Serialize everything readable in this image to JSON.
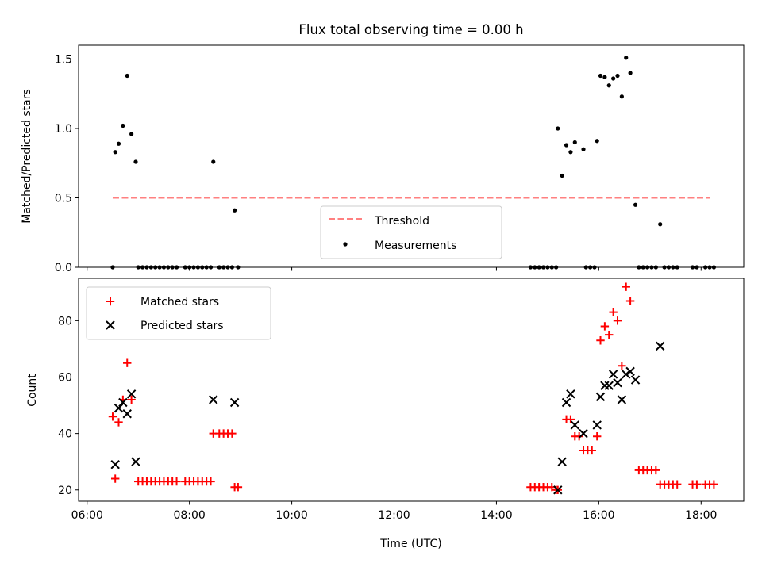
{
  "figure": {
    "title": "Flux total observing time = 0.00 h"
  },
  "chart_data": [
    {
      "type": "scatter",
      "title": "Flux total observing time = 0.00 h",
      "xlabel": "",
      "ylabel": "Matched/Predicted stars",
      "xlim": [
        "05:50",
        "18:50"
      ],
      "ylim": [
        0,
        1.6
      ],
      "x_ticks": [
        "06:00",
        "08:00",
        "10:00",
        "12:00",
        "14:00",
        "16:00",
        "18:00"
      ],
      "y_ticks": [
        "0.0",
        "0.5",
        "1.0",
        "1.5"
      ],
      "y_tick_values": [
        0,
        0.5,
        1.0,
        1.5
      ],
      "grid": false,
      "legend": "lower center",
      "threshold": {
        "name": "Threshold",
        "y": 0.5,
        "x_start": "06:30",
        "x_end": "18:10",
        "color": "#ff8080",
        "style": "dashed"
      },
      "series": [
        {
          "name": "Measurements",
          "marker": "dot",
          "color": "#000000",
          "points": [
            [
              "06:30",
              0.0
            ],
            [
              "06:33",
              0.83
            ],
            [
              "06:37",
              0.89
            ],
            [
              "06:42",
              1.02
            ],
            [
              "06:47",
              1.38
            ],
            [
              "06:52",
              0.96
            ],
            [
              "06:57",
              0.76
            ],
            [
              "07:00",
              0.0
            ],
            [
              "07:05",
              0.0
            ],
            [
              "07:10",
              0.0
            ],
            [
              "07:15",
              0.0
            ],
            [
              "07:20",
              0.0
            ],
            [
              "07:25",
              0.0
            ],
            [
              "07:30",
              0.0
            ],
            [
              "07:35",
              0.0
            ],
            [
              "07:40",
              0.0
            ],
            [
              "07:45",
              0.0
            ],
            [
              "07:55",
              0.0
            ],
            [
              "08:00",
              0.0
            ],
            [
              "08:05",
              0.0
            ],
            [
              "08:10",
              0.0
            ],
            [
              "08:15",
              0.0
            ],
            [
              "08:20",
              0.0
            ],
            [
              "08:25",
              0.0
            ],
            [
              "08:28",
              0.76
            ],
            [
              "08:35",
              0.0
            ],
            [
              "08:40",
              0.0
            ],
            [
              "08:45",
              0.0
            ],
            [
              "08:50",
              0.0
            ],
            [
              "08:53",
              0.41
            ],
            [
              "08:57",
              0.0
            ],
            [
              "14:40",
              0.0
            ],
            [
              "14:45",
              0.0
            ],
            [
              "14:50",
              0.0
            ],
            [
              "14:55",
              0.0
            ],
            [
              "15:00",
              0.0
            ],
            [
              "15:05",
              0.0
            ],
            [
              "15:10",
              0.0
            ],
            [
              "15:12",
              1.0
            ],
            [
              "15:17",
              0.66
            ],
            [
              "15:22",
              0.88
            ],
            [
              "15:27",
              0.83
            ],
            [
              "15:32",
              0.9
            ],
            [
              "15:42",
              0.85
            ],
            [
              "15:45",
              0.0
            ],
            [
              "15:50",
              0.0
            ],
            [
              "15:55",
              0.0
            ],
            [
              "15:58",
              0.91
            ],
            [
              "16:02",
              1.38
            ],
            [
              "16:07",
              1.37
            ],
            [
              "16:12",
              1.31
            ],
            [
              "16:17",
              1.36
            ],
            [
              "16:22",
              1.38
            ],
            [
              "16:27",
              1.23
            ],
            [
              "16:32",
              1.51
            ],
            [
              "16:37",
              1.4
            ],
            [
              "16:43",
              0.45
            ],
            [
              "16:47",
              0.0
            ],
            [
              "16:52",
              0.0
            ],
            [
              "16:57",
              0.0
            ],
            [
              "17:02",
              0.0
            ],
            [
              "17:07",
              0.0
            ],
            [
              "17:12",
              0.31
            ],
            [
              "17:17",
              0.0
            ],
            [
              "17:22",
              0.0
            ],
            [
              "17:27",
              0.0
            ],
            [
              "17:32",
              0.0
            ],
            [
              "17:50",
              0.0
            ],
            [
              "17:55",
              0.0
            ],
            [
              "18:05",
              0.0
            ],
            [
              "18:10",
              0.0
            ],
            [
              "18:15",
              0.0
            ]
          ]
        }
      ]
    },
    {
      "type": "scatter",
      "title": "",
      "xlabel": "Time (UTC)",
      "ylabel": "Count",
      "xlim": [
        "05:50",
        "18:50"
      ],
      "ylim": [
        16,
        95
      ],
      "x_ticks": [
        "06:00",
        "08:00",
        "10:00",
        "12:00",
        "14:00",
        "16:00",
        "18:00"
      ],
      "y_ticks": [
        "20",
        "40",
        "60",
        "80"
      ],
      "y_tick_values": [
        20,
        40,
        60,
        80
      ],
      "grid": false,
      "legend": "upper left",
      "series": [
        {
          "name": "Matched stars",
          "marker": "plus",
          "color": "#ff0000",
          "points": [
            [
              "06:30",
              46
            ],
            [
              "06:33",
              24
            ],
            [
              "06:37",
              44
            ],
            [
              "06:42",
              52
            ],
            [
              "06:47",
              65
            ],
            [
              "06:52",
              52
            ],
            [
              "07:00",
              23
            ],
            [
              "07:05",
              23
            ],
            [
              "07:10",
              23
            ],
            [
              "07:15",
              23
            ],
            [
              "07:20",
              23
            ],
            [
              "07:25",
              23
            ],
            [
              "07:30",
              23
            ],
            [
              "07:35",
              23
            ],
            [
              "07:40",
              23
            ],
            [
              "07:45",
              23
            ],
            [
              "07:55",
              23
            ],
            [
              "08:00",
              23
            ],
            [
              "08:05",
              23
            ],
            [
              "08:10",
              23
            ],
            [
              "08:15",
              23
            ],
            [
              "08:20",
              23
            ],
            [
              "08:25",
              23
            ],
            [
              "08:28",
              40
            ],
            [
              "08:35",
              40
            ],
            [
              "08:40",
              40
            ],
            [
              "08:45",
              40
            ],
            [
              "08:50",
              40
            ],
            [
              "08:53",
              21
            ],
            [
              "08:57",
              21
            ],
            [
              "14:40",
              21
            ],
            [
              "14:45",
              21
            ],
            [
              "14:50",
              21
            ],
            [
              "14:55",
              21
            ],
            [
              "15:00",
              21
            ],
            [
              "15:05",
              21
            ],
            [
              "15:10",
              20
            ],
            [
              "15:12",
              20
            ],
            [
              "15:22",
              45
            ],
            [
              "15:27",
              45
            ],
            [
              "15:32",
              39
            ],
            [
              "15:37",
              39
            ],
            [
              "15:42",
              34
            ],
            [
              "15:47",
              34
            ],
            [
              "15:52",
              34
            ],
            [
              "15:58",
              39
            ],
            [
              "16:02",
              73
            ],
            [
              "16:07",
              78
            ],
            [
              "16:12",
              75
            ],
            [
              "16:17",
              83
            ],
            [
              "16:22",
              80
            ],
            [
              "16:27",
              64
            ],
            [
              "16:32",
              92
            ],
            [
              "16:37",
              87
            ],
            [
              "16:47",
              27
            ],
            [
              "16:52",
              27
            ],
            [
              "16:57",
              27
            ],
            [
              "17:02",
              27
            ],
            [
              "17:07",
              27
            ],
            [
              "17:12",
              22
            ],
            [
              "17:17",
              22
            ],
            [
              "17:22",
              22
            ],
            [
              "17:27",
              22
            ],
            [
              "17:32",
              22
            ],
            [
              "17:50",
              22
            ],
            [
              "17:55",
              22
            ],
            [
              "18:05",
              22
            ],
            [
              "18:10",
              22
            ],
            [
              "18:15",
              22
            ]
          ]
        },
        {
          "name": "Predicted stars",
          "marker": "x",
          "color": "#000000",
          "points": [
            [
              "06:33",
              29
            ],
            [
              "06:37",
              49
            ],
            [
              "06:42",
              51
            ],
            [
              "06:47",
              47
            ],
            [
              "06:52",
              54
            ],
            [
              "06:57",
              30
            ],
            [
              "08:28",
              52
            ],
            [
              "08:53",
              51
            ],
            [
              "15:12",
              20
            ],
            [
              "15:17",
              30
            ],
            [
              "15:22",
              51
            ],
            [
              "15:27",
              54
            ],
            [
              "15:32",
              43
            ],
            [
              "15:42",
              40
            ],
            [
              "15:58",
              43
            ],
            [
              "16:02",
              53
            ],
            [
              "16:07",
              57
            ],
            [
              "16:12",
              57
            ],
            [
              "16:17",
              61
            ],
            [
              "16:22",
              58
            ],
            [
              "16:27",
              52
            ],
            [
              "16:32",
              61
            ],
            [
              "16:37",
              62
            ],
            [
              "16:43",
              59
            ],
            [
              "17:12",
              71
            ]
          ]
        }
      ]
    }
  ]
}
